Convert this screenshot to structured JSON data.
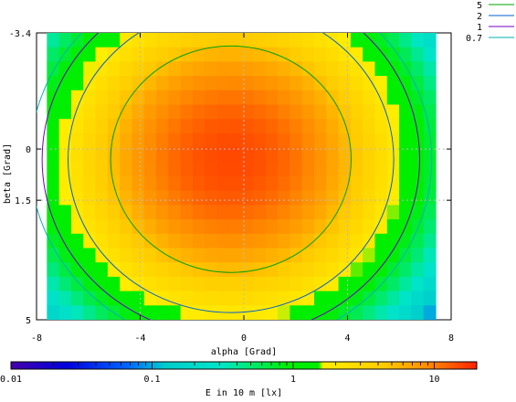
{
  "chart_data": {
    "type": "heatmap",
    "xlabel": "alpha [Grad]",
    "ylabel": "beta [Grad]",
    "xlim": [
      -8,
      8
    ],
    "ylim": [
      -3.4,
      5
    ],
    "y_inverted": true,
    "x_ticks": [
      {
        "value": -8,
        "label": "-8"
      },
      {
        "value": -4,
        "label": "-4"
      },
      {
        "value": 0,
        "label": "0"
      },
      {
        "value": 4,
        "label": "4"
      },
      {
        "value": 8,
        "label": "8"
      }
    ],
    "y_ticks": [
      {
        "value": -3.4,
        "label": "-3.4"
      },
      {
        "value": 0,
        "label": "0"
      },
      {
        "value": 1.5,
        "label": "1.5"
      },
      {
        "value": 5,
        "label": "5"
      }
    ],
    "grid": true,
    "data_extent": {
      "x": [
        -7.6,
        7.4
      ],
      "y": [
        -3.4,
        5
      ]
    },
    "field_model": {
      "peak": 15,
      "center": [
        -0.5,
        0.3
      ]
    },
    "contours": [
      {
        "label": "5",
        "level": 5,
        "color": "#00a000"
      },
      {
        "label": "2",
        "level": 2,
        "color": "#0060d0"
      },
      {
        "label": "1",
        "level": 1,
        "color": "#7000c0"
      },
      {
        "label": "0.7",
        "level": 0.7,
        "color": "#00b0b0"
      }
    ],
    "legend_position": "top-right",
    "colorbar": {
      "title": "E in 10 m [lx]",
      "scale": "log",
      "range": [
        0.01,
        20
      ],
      "tick_labels": [
        {
          "value": 0.01,
          "label": "0.01"
        },
        {
          "value": 0.1,
          "label": "0.1"
        },
        {
          "value": 1,
          "label": "1"
        },
        {
          "value": 10,
          "label": "10"
        }
      ]
    }
  }
}
